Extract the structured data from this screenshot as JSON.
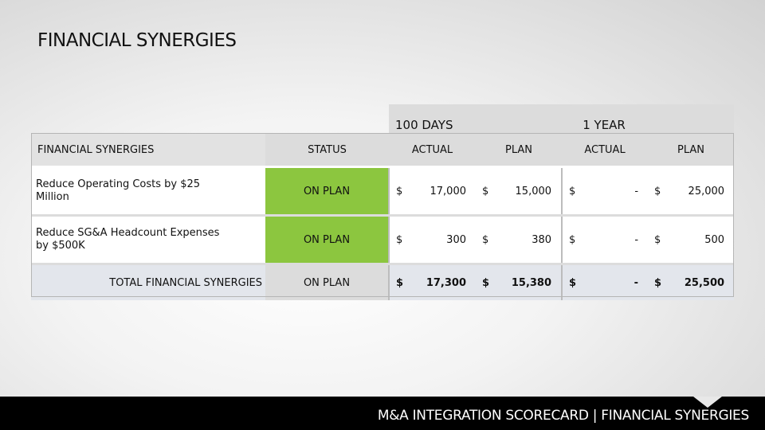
{
  "title": "FINANCIAL SYNERGIES",
  "periods": {
    "days": "100 DAYS",
    "year": "1 YEAR"
  },
  "headers": {
    "label": "FINANCIAL SYNERGIES",
    "status": "STATUS",
    "actual1": "ACTUAL",
    "plan1": "PLAN",
    "actual2": "ACTUAL",
    "plan2": "PLAN"
  },
  "rows": [
    {
      "label": "Reduce Operating Costs by $25 Million",
      "status": "ON PLAN",
      "cur": "$",
      "actual1": "17,000",
      "plan1": "15,000",
      "actual2": "-",
      "plan2": "25,000"
    },
    {
      "label": "Reduce SG&A Headcount Expenses by $500K",
      "status": "ON PLAN",
      "cur": "$",
      "actual1": "300",
      "plan1": "380",
      "actual2": "-",
      "plan2": "500"
    }
  ],
  "total": {
    "label": "TOTAL FINANCIAL SYNERGIES",
    "status": "ON PLAN",
    "cur": "$",
    "actual1": "17,300",
    "plan1": "15,380",
    "actual2": "-",
    "plan2": "25,500"
  },
  "footer": "M&A INTEGRATION SCORECARD | FINANCIAL SYNERGIES",
  "colors": {
    "on_plan": "#8cc63f",
    "footer_bg": "#000000"
  }
}
